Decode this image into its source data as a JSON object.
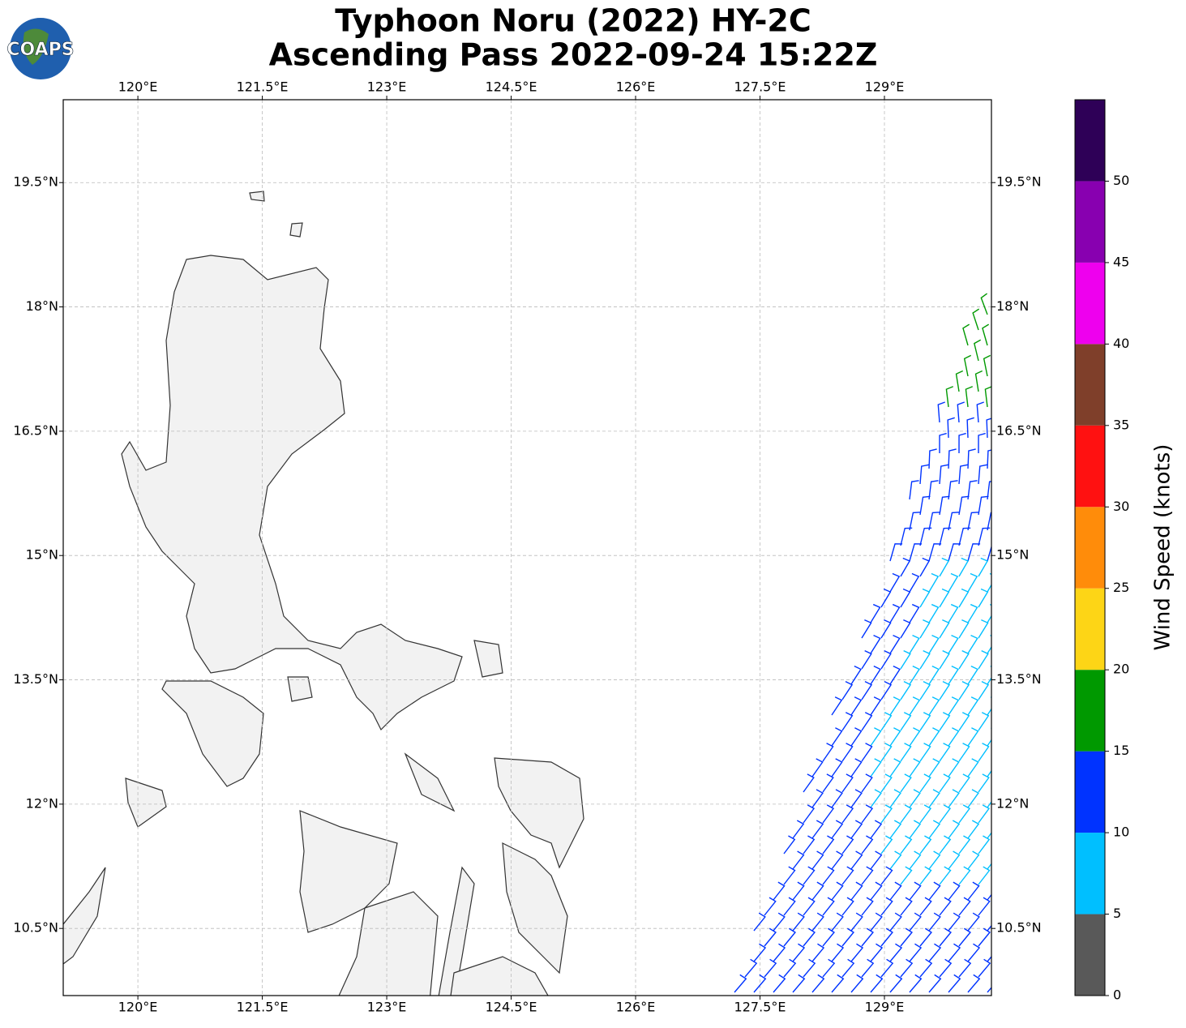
{
  "logo": "COAPS",
  "title": "Typhoon Noru (2022) HY-2C",
  "subtitle": "Ascending Pass 2022-09-24 15:22Z",
  "map": {
    "xlim": [
      119.1,
      130.29
    ],
    "ylim": [
      9.69,
      20.5
    ],
    "grid": true,
    "xticks": [
      {
        "value": 120,
        "label": "120°E"
      },
      {
        "value": 121.5,
        "label": "121.5°E"
      },
      {
        "value": 123,
        "label": "123°E"
      },
      {
        "value": 124.5,
        "label": "124.5°E"
      },
      {
        "value": 126,
        "label": "126°E"
      },
      {
        "value": 127.5,
        "label": "127.5°E"
      },
      {
        "value": 129,
        "label": "129°E"
      }
    ],
    "yticks": [
      {
        "value": 10.5,
        "label": "10.5°N"
      },
      {
        "value": 12,
        "label": "12°N"
      },
      {
        "value": 13.5,
        "label": "13.5°N"
      },
      {
        "value": 15,
        "label": "15°N"
      },
      {
        "value": 16.5,
        "label": "16.5°N"
      },
      {
        "value": 18,
        "label": "18°N"
      },
      {
        "value": 19.5,
        "label": "19.5°N"
      }
    ]
  },
  "colorbar": {
    "label": "Wind Speed (knots)",
    "clim": [
      0,
      55
    ],
    "ticks": [
      0,
      5,
      10,
      15,
      20,
      25,
      30,
      35,
      40,
      45,
      50
    ],
    "colors": [
      "#595959",
      "#00bfff",
      "#0033ff",
      "#009900",
      "#fdd516",
      "#ff8c0a",
      "#ff1111",
      "#7f3f2a",
      "#ee00ee",
      "#8800b0",
      "#2e0057"
    ]
  }
}
